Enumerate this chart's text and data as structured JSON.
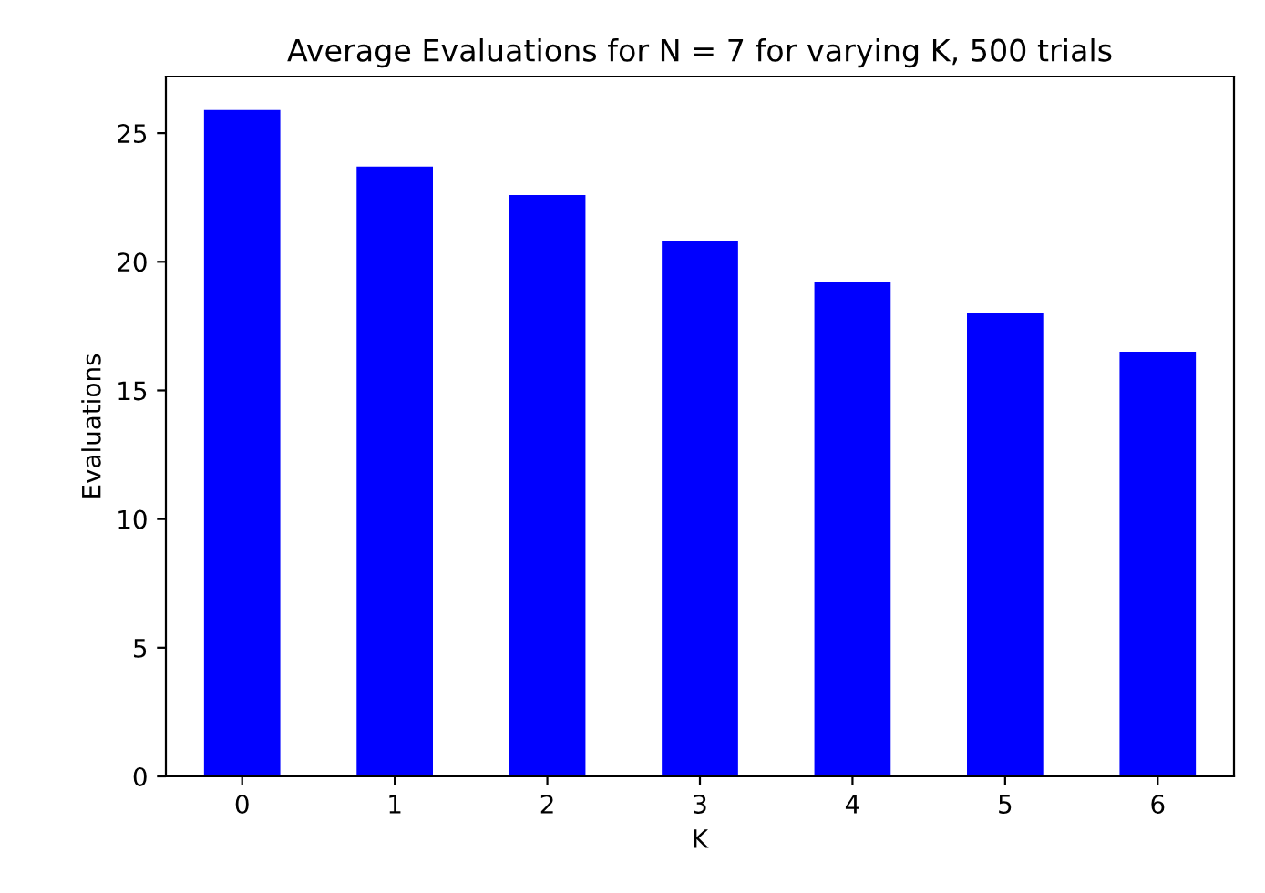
{
  "chart_data": {
    "type": "bar",
    "title": "Average Evaluations for N = 7 for varying K, 500 trials",
    "xlabel": "K",
    "ylabel": "Evaluations",
    "categories": [
      "0",
      "1",
      "2",
      "3",
      "4",
      "5",
      "6"
    ],
    "values": [
      25.9,
      23.7,
      22.6,
      20.8,
      19.2,
      18.0,
      16.5
    ],
    "color": "#0000ff",
    "ylim": [
      0,
      27.2
    ],
    "yticks": [
      0,
      5,
      10,
      15,
      20,
      25
    ],
    "grid": false
  }
}
